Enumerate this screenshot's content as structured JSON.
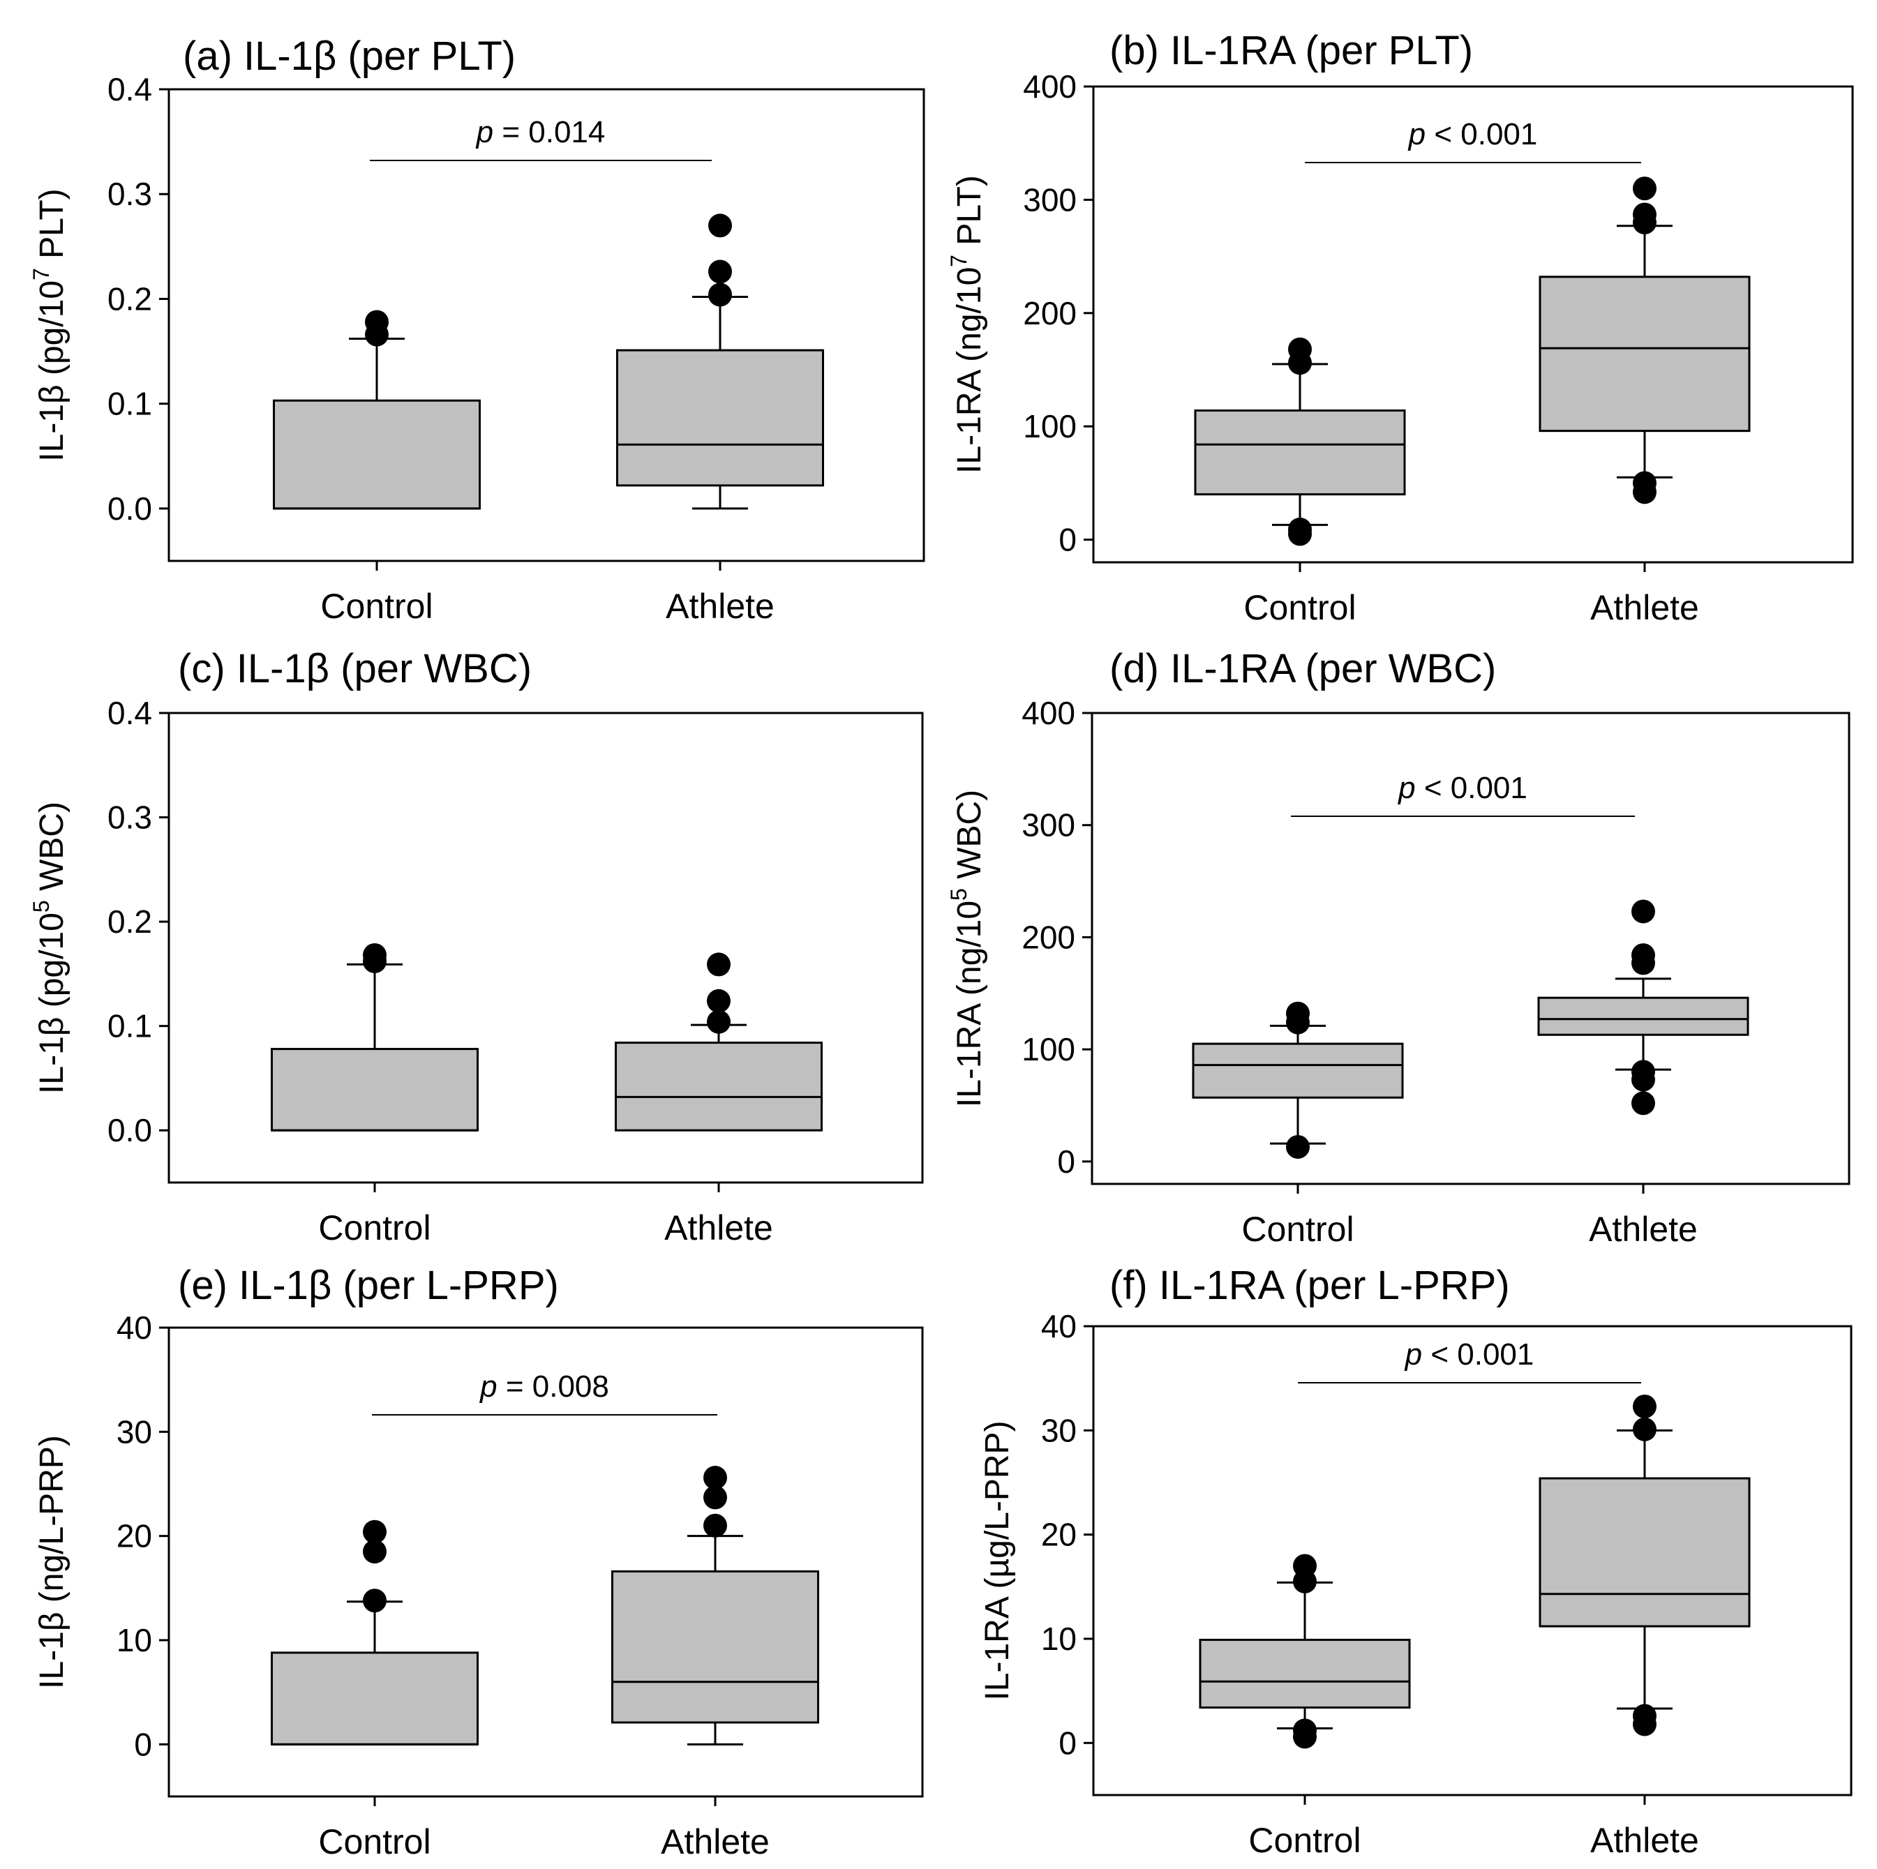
{
  "chart_data": [
    {
      "type": "box",
      "title": "(a) IL-1β (per PLT)",
      "ylabel": "IL-1β (pg/10^7 PLT)",
      "ylim": [
        -0.05,
        0.4
      ],
      "yticks": [
        0.0,
        0.1,
        0.2,
        0.3,
        0.4
      ],
      "ytick_labels": [
        "0.0",
        "0.1",
        "0.2",
        "0.3",
        "0.4"
      ],
      "categories": [
        "Control",
        "Athlete"
      ],
      "pvalue": "= 0.014",
      "groups": [
        {
          "name": "Control",
          "whisker_low": 0.0,
          "q1": 0.0,
          "median": 0.0,
          "q3": 0.103,
          "whisker_high": 0.162,
          "outliers": [
            0.166,
            0.178
          ]
        },
        {
          "name": "Athlete",
          "whisker_low": 0.0,
          "q1": 0.022,
          "median": 0.061,
          "q3": 0.151,
          "whisker_high": 0.202,
          "outliers": [
            0.204,
            0.226,
            0.27
          ]
        }
      ]
    },
    {
      "type": "box",
      "title": "(b) IL-1RA (per PLT)",
      "ylabel": "IL-1RA (ng/10^7 PLT)",
      "ylim": [
        -20,
        400
      ],
      "yticks": [
        0,
        100,
        200,
        300,
        400
      ],
      "ytick_labels": [
        "0",
        "100",
        "200",
        "300",
        "400"
      ],
      "categories": [
        "Control",
        "Athlete"
      ],
      "pvalue": "< 0.001",
      "groups": [
        {
          "name": "Control",
          "whisker_low": 13,
          "q1": 40,
          "median": 84,
          "q3": 114,
          "whisker_high": 155,
          "outliers": [
            5,
            9,
            156,
            168
          ]
        },
        {
          "name": "Athlete",
          "whisker_low": 55,
          "q1": 96,
          "median": 169,
          "q3": 232,
          "whisker_high": 277,
          "outliers": [
            42,
            50,
            280,
            287,
            310
          ]
        }
      ]
    },
    {
      "type": "box",
      "title": "(c) IL-1β (per WBC)",
      "ylabel": "IL-1β (pg/10^5 WBC)",
      "ylim": [
        -0.05,
        0.4
      ],
      "yticks": [
        0.0,
        0.1,
        0.2,
        0.3,
        0.4
      ],
      "ytick_labels": [
        "0.0",
        "0.1",
        "0.2",
        "0.3",
        "0.4"
      ],
      "categories": [
        "Control",
        "Athlete"
      ],
      "pvalue": "",
      "groups": [
        {
          "name": "Control",
          "whisker_low": 0.0,
          "q1": 0.0,
          "median": 0.0,
          "q3": 0.078,
          "whisker_high": 0.159,
          "outliers": [
            0.162,
            0.168
          ]
        },
        {
          "name": "Athlete",
          "whisker_low": 0.0,
          "q1": 0.0,
          "median": 0.032,
          "q3": 0.084,
          "whisker_high": 0.101,
          "outliers": [
            0.104,
            0.124,
            0.159
          ]
        }
      ]
    },
    {
      "type": "box",
      "title": "(d) IL-1RA (per WBC)",
      "ylabel": "IL-1RA (ng/10^5 WBC)",
      "ylim": [
        -20,
        400
      ],
      "yticks": [
        0,
        100,
        200,
        300,
        400
      ],
      "ytick_labels": [
        "0",
        "100",
        "200",
        "300",
        "400"
      ],
      "categories": [
        "Control",
        "Athlete"
      ],
      "pvalue": "< 0.001",
      "groups": [
        {
          "name": "Control",
          "whisker_low": 16,
          "q1": 57,
          "median": 86,
          "q3": 105,
          "whisker_high": 121,
          "outliers": [
            13,
            124,
            132
          ]
        },
        {
          "name": "Athlete",
          "whisker_low": 82,
          "q1": 113,
          "median": 127,
          "q3": 146,
          "whisker_high": 163,
          "outliers": [
            52,
            73,
            80,
            177,
            184,
            223
          ]
        }
      ]
    },
    {
      "type": "box",
      "title": "(e) IL-1β (per L-PRP)",
      "ylabel": "IL-1β (ng/L-PRP)",
      "ylim": [
        -5,
        40
      ],
      "yticks": [
        0,
        10,
        20,
        30,
        40
      ],
      "ytick_labels": [
        "0",
        "10",
        "20",
        "30",
        "40"
      ],
      "categories": [
        "Control",
        "Athlete"
      ],
      "pvalue": "= 0.008",
      "groups": [
        {
          "name": "Control",
          "whisker_low": 0,
          "q1": 0,
          "median": 0,
          "q3": 8.8,
          "whisker_high": 13.7,
          "outliers": [
            13.8,
            18.5,
            20.4
          ]
        },
        {
          "name": "Athlete",
          "whisker_low": 0,
          "q1": 2.1,
          "median": 6.0,
          "q3": 16.6,
          "whisker_high": 20.0,
          "outliers": [
            21.0,
            23.7,
            25.6
          ]
        }
      ]
    },
    {
      "type": "box",
      "title": "(f) IL-1RA (per L-PRP)",
      "ylabel": "IL-1RA (µg/L-PRP)",
      "ylim": [
        -5,
        40
      ],
      "yticks": [
        0,
        10,
        20,
        30,
        40
      ],
      "ytick_labels": [
        "0",
        "10",
        "20",
        "30",
        "40"
      ],
      "categories": [
        "Control",
        "Athlete"
      ],
      "pvalue": "< 0.001",
      "groups": [
        {
          "name": "Control",
          "whisker_low": 1.4,
          "q1": 3.4,
          "median": 5.9,
          "q3": 9.9,
          "whisker_high": 15.4,
          "outliers": [
            0.6,
            1.2,
            15.5,
            17.0
          ]
        },
        {
          "name": "Athlete",
          "whisker_low": 3.3,
          "q1": 11.2,
          "median": 14.3,
          "q3": 25.4,
          "whisker_high": 30.0,
          "outliers": [
            1.8,
            2.6,
            30.1,
            32.3
          ]
        }
      ]
    }
  ]
}
